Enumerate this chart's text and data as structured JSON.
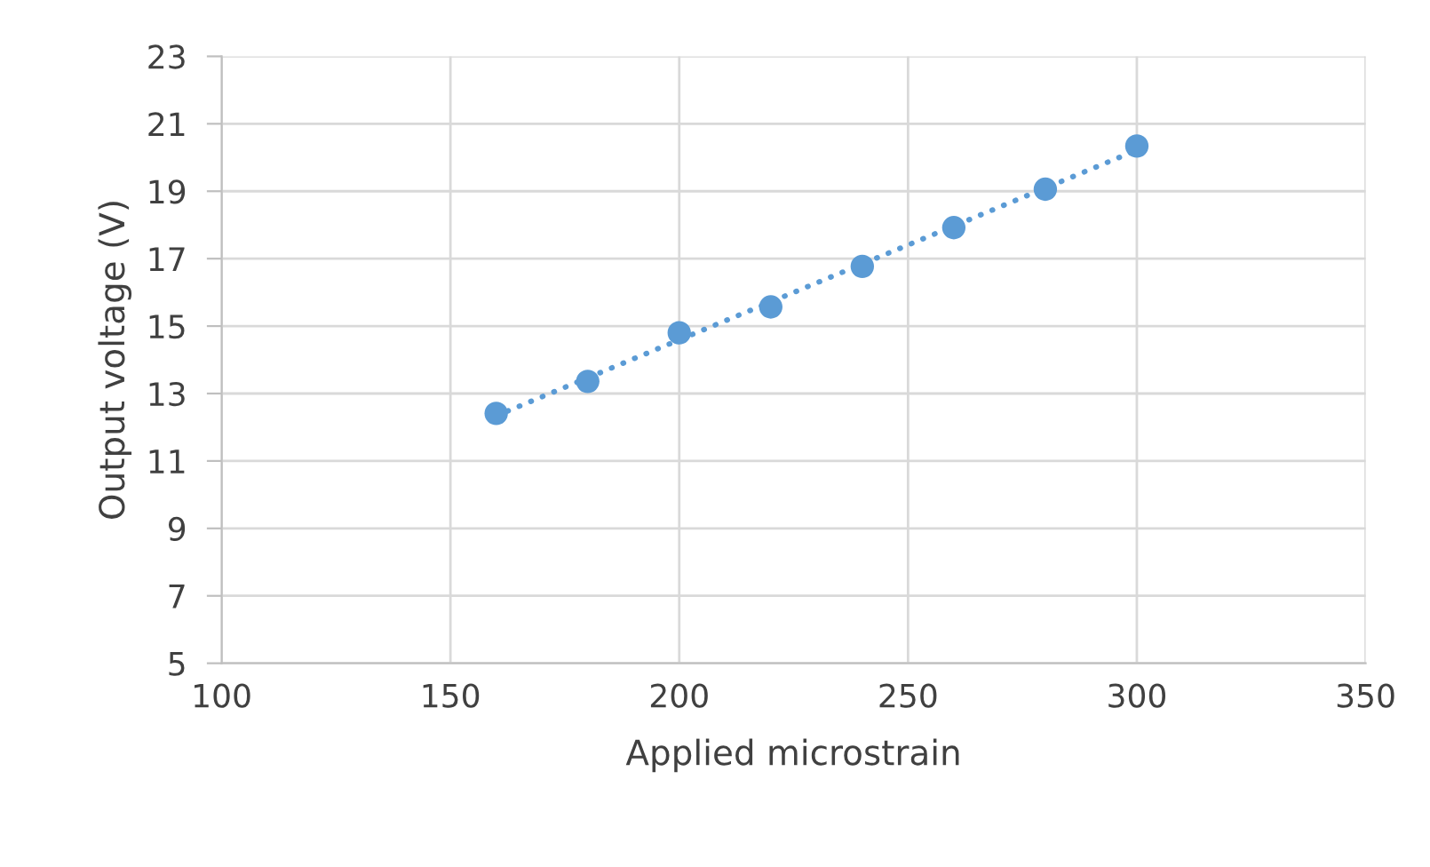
{
  "chart_data": {
    "type": "scatter",
    "xlabel": "Applied microstrain",
    "ylabel": "Output voltage (V)",
    "x": [
      160,
      180,
      200,
      220,
      240,
      260,
      280,
      300
    ],
    "series": [
      {
        "color": "#5b9bd5",
        "values": [
          12.41,
          13.36,
          14.8,
          15.57,
          16.77,
          17.92,
          19.06,
          20.34
        ],
        "marker": "circle"
      },
      {
        "type": "line",
        "color": "#5b9bd5",
        "x": [
          160,
          300
        ],
        "values": [
          12.34,
          20.22
        ],
        "line_style": "dotted",
        "marker": "none"
      }
    ],
    "xlim": [
      100,
      350
    ],
    "xticks": [
      100,
      150,
      200,
      250,
      300,
      350
    ],
    "ylim": [
      5,
      23
    ],
    "yticks": [
      5,
      7,
      9,
      11,
      13,
      15,
      17,
      19,
      21,
      23
    ],
    "grid": true,
    "legend": false
  }
}
